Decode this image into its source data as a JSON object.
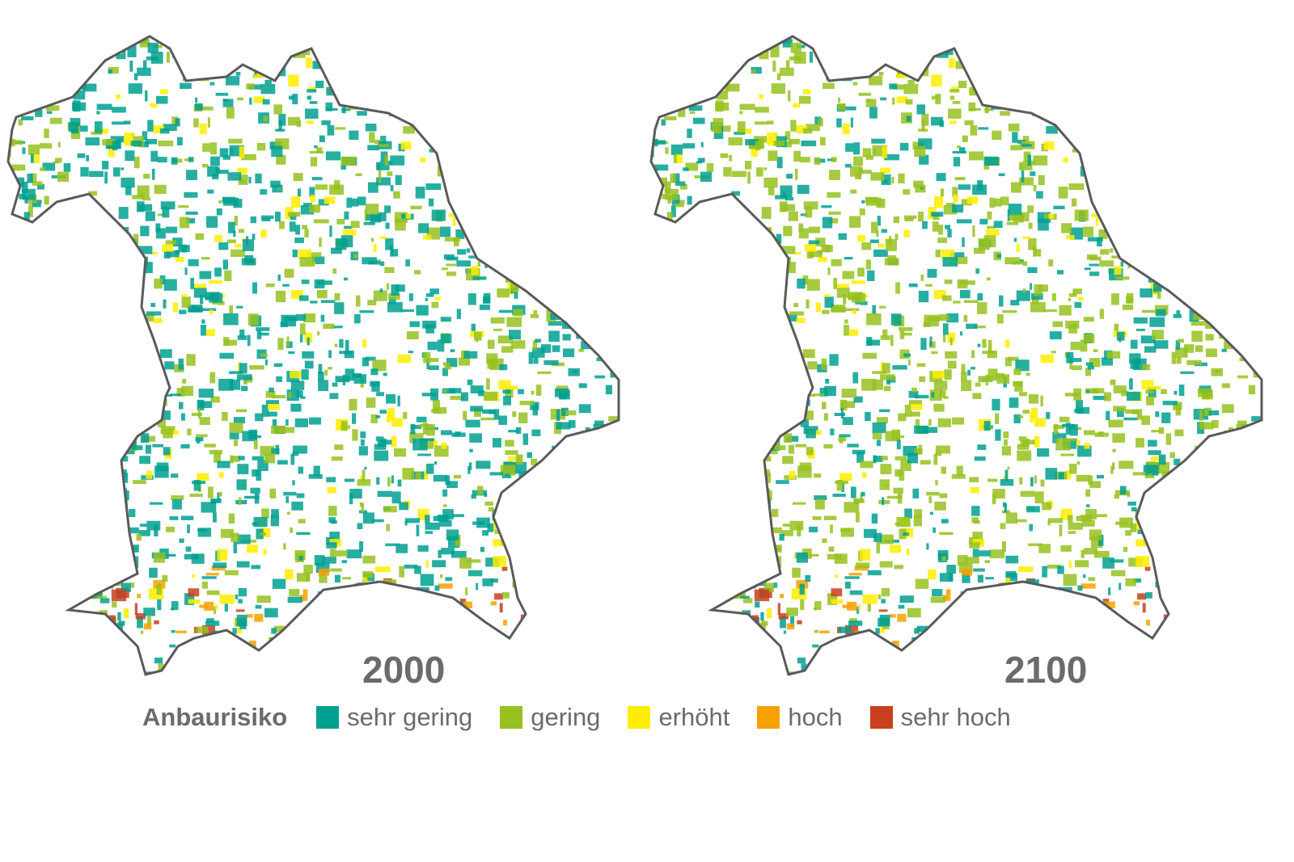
{
  "maps": [
    {
      "year": "2000",
      "dominant_class": "sehr gering"
    },
    {
      "year": "2100",
      "dominant_class": "gering"
    }
  ],
  "legend": {
    "title": "Anbaurisiko",
    "items": [
      {
        "label": "sehr gering",
        "color": "#00a090"
      },
      {
        "label": "gering",
        "color": "#96c11f"
      },
      {
        "label": "erhöht",
        "color": "#ffed00"
      },
      {
        "label": "hoch",
        "color": "#f5a200"
      },
      {
        "label": "sehr hoch",
        "color": "#c8401f"
      }
    ]
  },
  "outline_color": "#5a5a5a"
}
